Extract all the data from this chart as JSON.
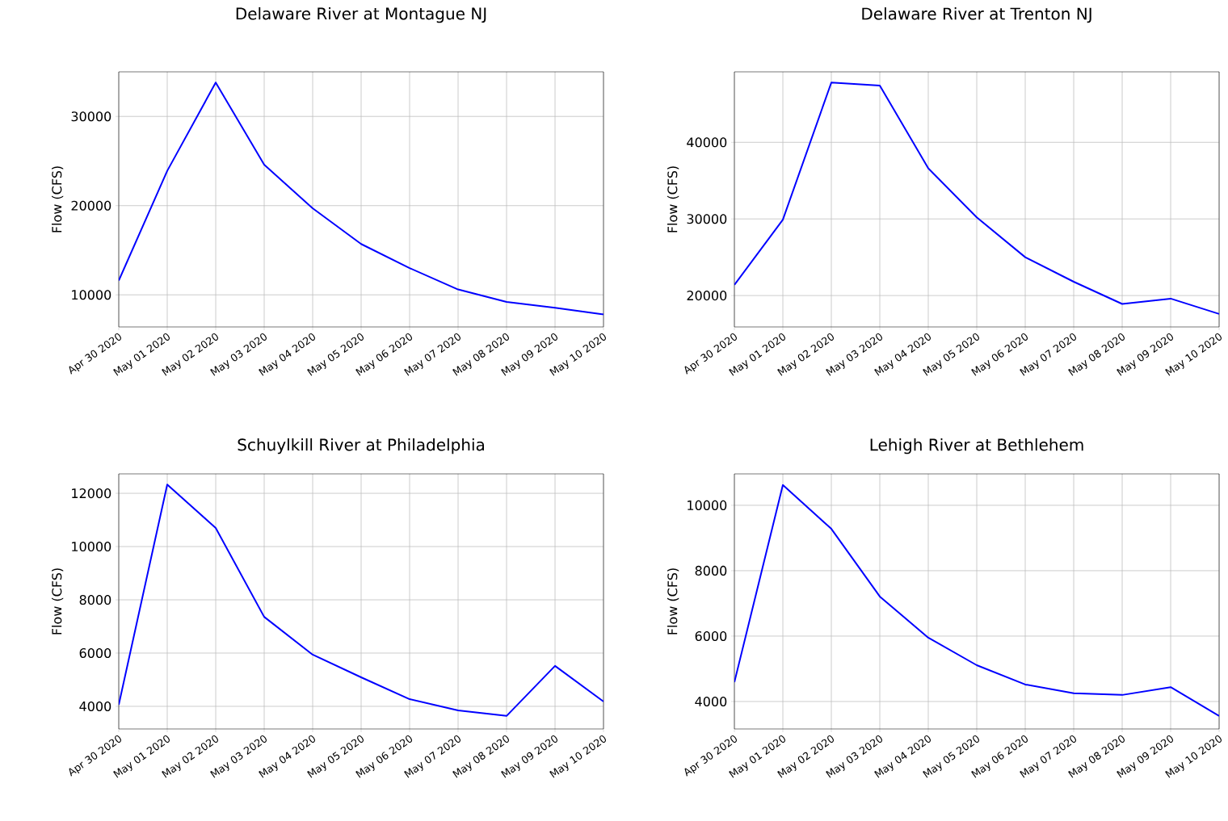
{
  "chart_data": [
    {
      "type": "line",
      "title": "Delaware River at Montague NJ",
      "ylabel": "Flow (CFS)",
      "categories": [
        "Apr 30 2020",
        "May 01 2020",
        "May 02 2020",
        "May 03 2020",
        "May 04 2020",
        "May 05 2020",
        "May 06 2020",
        "May 07 2020",
        "May 08 2020",
        "May 09 2020",
        "May 10 2020"
      ],
      "series": [
        {
          "color": "#0000ff",
          "values": [
            11600,
            23900,
            33800,
            24600,
            19700,
            15700,
            13000,
            10600,
            9200,
            8550,
            7800
          ]
        }
      ],
      "ylim": [
        6400,
        35000
      ],
      "yticks": [
        10000,
        20000,
        30000
      ],
      "grid": true
    },
    {
      "type": "line",
      "title": "Delaware River at Trenton NJ",
      "ylabel": "Flow (CFS)",
      "categories": [
        "Apr 30 2020",
        "May 01 2020",
        "May 02 2020",
        "May 03 2020",
        "May 04 2020",
        "May 05 2020",
        "May 06 2020",
        "May 07 2020",
        "May 08 2020",
        "May 09 2020",
        "May 10 2020"
      ],
      "series": [
        {
          "color": "#0000ff",
          "values": [
            21400,
            29900,
            47800,
            47400,
            36600,
            30200,
            25000,
            21800,
            18900,
            19600,
            17600
          ]
        }
      ],
      "ylim": [
        15900,
        49200
      ],
      "yticks": [
        20000,
        30000,
        40000
      ],
      "grid": true
    },
    {
      "type": "line",
      "title": "Schuylkill River at Philadelphia",
      "ylabel": "Flow (CFS)",
      "categories": [
        "Apr 30 2020",
        "May 01 2020",
        "May 02 2020",
        "May 03 2020",
        "May 04 2020",
        "May 05 2020",
        "May 06 2020",
        "May 07 2020",
        "May 08 2020",
        "May 09 2020",
        "May 10 2020"
      ],
      "series": [
        {
          "color": "#0000ff",
          "values": [
            4060,
            12330,
            10700,
            7360,
            5940,
            5090,
            4270,
            3850,
            3640,
            5520,
            4180
          ]
        }
      ],
      "ylim": [
        3150,
        12730
      ],
      "yticks": [
        4000,
        6000,
        8000,
        10000,
        12000
      ],
      "grid": true
    },
    {
      "type": "line",
      "title": "Lehigh River at Bethlehem",
      "ylabel": "Flow (CFS)",
      "categories": [
        "Apr 30 2020",
        "May 01 2020",
        "May 02 2020",
        "May 03 2020",
        "May 04 2020",
        "May 05 2020",
        "May 06 2020",
        "May 07 2020",
        "May 08 2020",
        "May 09 2020",
        "May 10 2020"
      ],
      "series": [
        {
          "color": "#0000ff",
          "values": [
            4590,
            10620,
            9280,
            7210,
            5950,
            5110,
            4520,
            4250,
            4200,
            4440,
            3560
          ]
        }
      ],
      "ylim": [
        3160,
        10960
      ],
      "yticks": [
        4000,
        6000,
        8000,
        10000
      ],
      "grid": true
    }
  ]
}
